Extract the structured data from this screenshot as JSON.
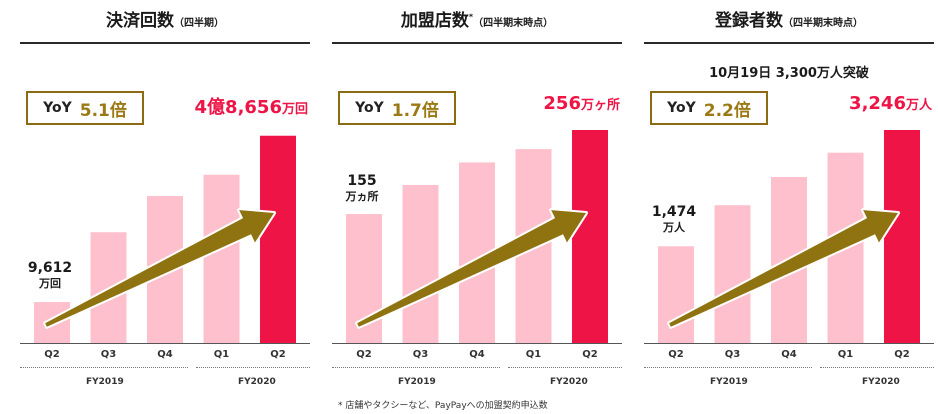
{
  "colors": {
    "bar": "#ffc0cd",
    "highlight": "#ee1446",
    "arrow": "#8f7311",
    "gold": "#9b7a16"
  },
  "fiscal_years": {
    "fy2019": "FY2019",
    "fy2020": "FY2020"
  },
  "footnote": "* 店舗やタクシーなど、PayPayへの加盟契約申込数",
  "chart_data": [
    {
      "type": "bar",
      "title": "決済回数",
      "subtitle": "（四半期）",
      "title_note": "",
      "categories": [
        "Q2",
        "Q3",
        "Q4",
        "Q1",
        "Q2"
      ],
      "values": [
        9612,
        26000,
        34500,
        39500,
        48656
      ],
      "unit": "万回",
      "ylim": [
        0,
        50000
      ],
      "yoy_label": "YoY",
      "yoy_value": "5.1倍",
      "first_value_label": "9,612",
      "first_unit_label": "万回",
      "last_value_label": "4億8,656",
      "last_unit_label": "万回",
      "headline": ""
    },
    {
      "type": "bar",
      "title": "加盟店数",
      "subtitle": "（四半期末時点）",
      "title_note": "*",
      "categories": [
        "Q2",
        "Q3",
        "Q4",
        "Q1",
        "Q2"
      ],
      "values": [
        155,
        190,
        217,
        233,
        256
      ],
      "unit": "万ヶ所",
      "ylim": [
        0,
        256
      ],
      "yoy_label": "YoY",
      "yoy_value": "1.7倍",
      "first_value_label": "155",
      "first_unit_label": "万ヵ所",
      "last_value_label": "256",
      "last_unit_label": "万ヶ所",
      "headline": ""
    },
    {
      "type": "bar",
      "title": "登録者数",
      "subtitle": "（四半期末時点）",
      "title_note": "",
      "categories": [
        "Q2",
        "Q3",
        "Q4",
        "Q1",
        "Q2"
      ],
      "values": [
        1474,
        2100,
        2530,
        2900,
        3246
      ],
      "unit": "万人",
      "ylim": [
        0,
        3246
      ],
      "yoy_label": "YoY",
      "yoy_value": "2.2倍",
      "first_value_label": "1,474",
      "first_unit_label": "万人",
      "last_value_label": "3,246",
      "last_unit_label": "万人",
      "headline": "10月19日 3,300万人突破"
    }
  ]
}
